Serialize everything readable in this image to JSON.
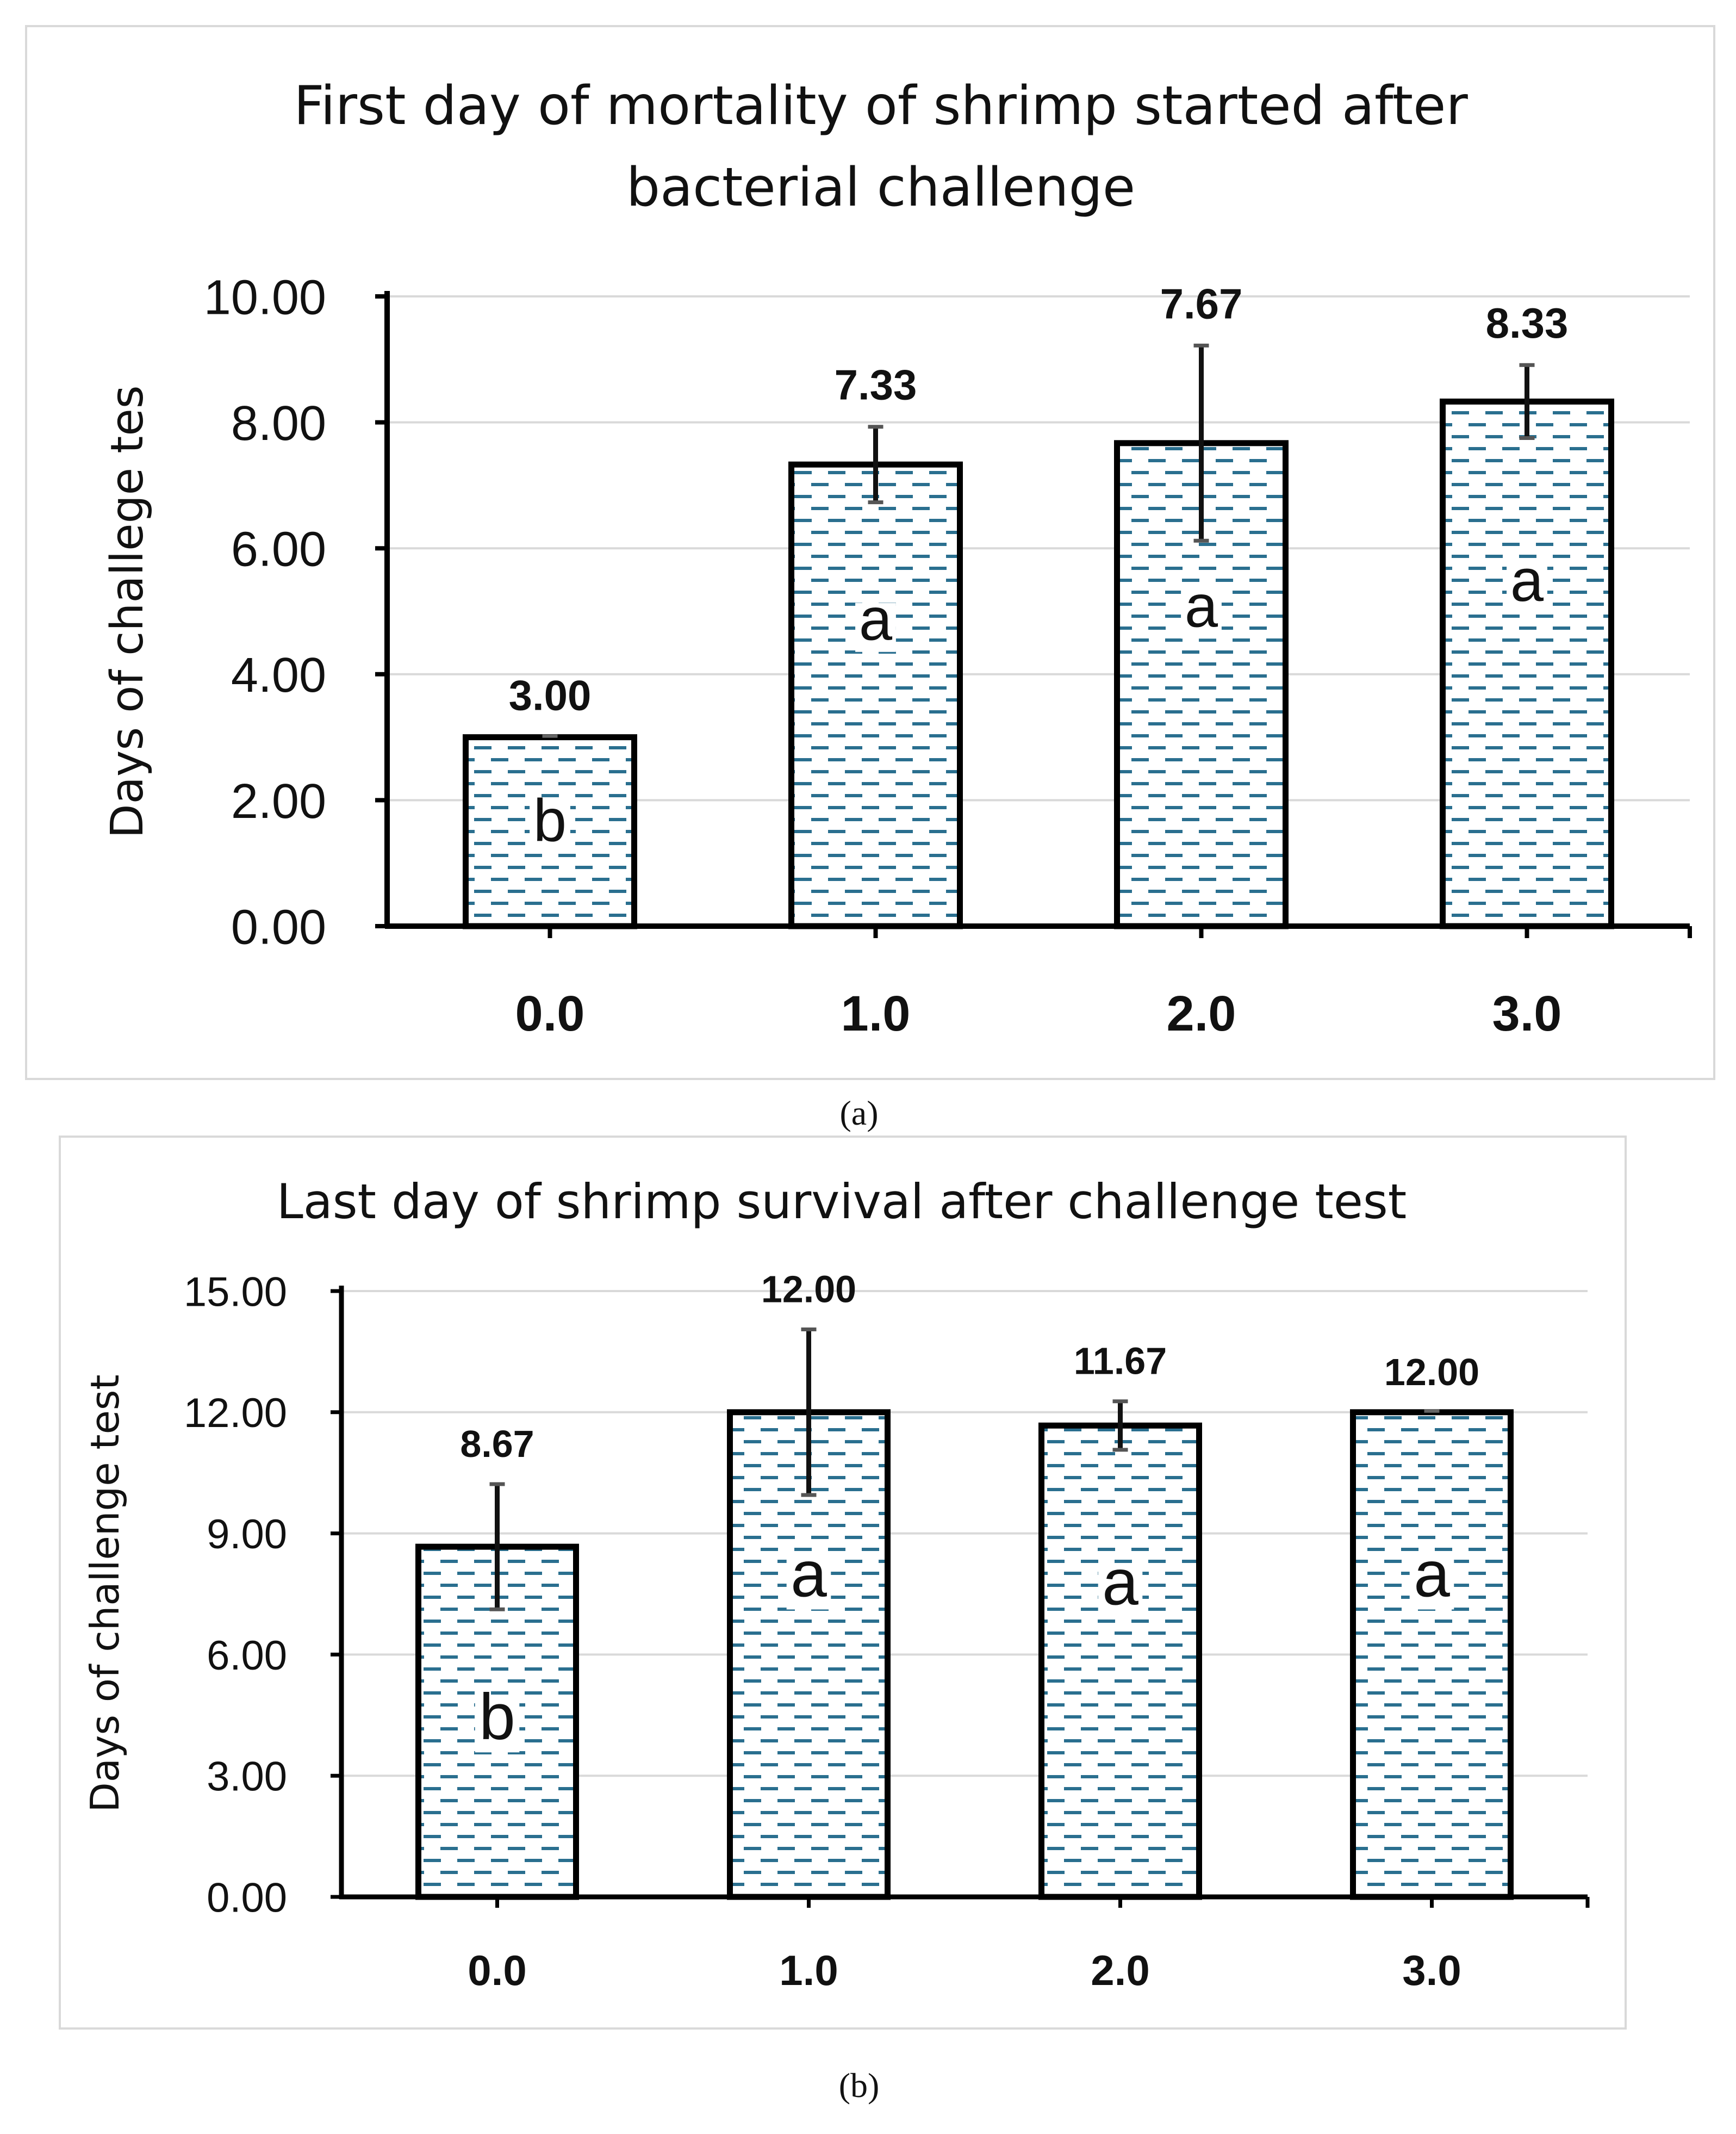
{
  "chart_data": [
    {
      "type": "bar",
      "title": "First day of mortality of shrimp started after bacterial challenge",
      "title_lines": [
        "First day of mortality of shrimp started after",
        "bacterial challenge"
      ],
      "ylabel": "Days of challege tes",
      "xlabel": "",
      "categories": [
        "0.0",
        "1.0",
        "2.0",
        "3.0"
      ],
      "values": [
        3.0,
        7.33,
        7.67,
        8.33
      ],
      "value_labels": [
        "3.00",
        "7.33",
        "7.67",
        "8.33"
      ],
      "errors": [
        0.0,
        0.6,
        1.55,
        0.58
      ],
      "letters": [
        "b",
        "a",
        "a",
        "a"
      ],
      "ylim": [
        0,
        10
      ],
      "yticks": [
        "0.00",
        "2.00",
        "4.00",
        "6.00",
        "8.00",
        "10.00"
      ],
      "grid": true,
      "caption": "(a)"
    },
    {
      "type": "bar",
      "title": "Last day of shrimp survival after challenge test",
      "title_lines": [
        "Last day of shrimp survival after challenge test"
      ],
      "ylabel": "Days of challenge test",
      "xlabel": "",
      "categories": [
        "0.0",
        "1.0",
        "2.0",
        "3.0"
      ],
      "values": [
        8.67,
        12.0,
        11.67,
        12.0
      ],
      "value_labels": [
        "8.67",
        "12.00",
        "11.67",
        "12.00"
      ],
      "errors": [
        1.55,
        2.05,
        0.6,
        0.0
      ],
      "letters": [
        "b",
        "a",
        "a",
        "a"
      ],
      "ylim": [
        0,
        15
      ],
      "yticks": [
        "0.00",
        "3.00",
        "6.00",
        "9.00",
        "12.00",
        "15.00"
      ],
      "grid": true,
      "caption": "(b)"
    }
  ],
  "colors": {
    "bar_fill": "#ffffff",
    "bar_stroke": "#000000",
    "dash_pattern": "#2a6f8f",
    "grid": "#d9d9d9",
    "error_bar": "#111111"
  }
}
